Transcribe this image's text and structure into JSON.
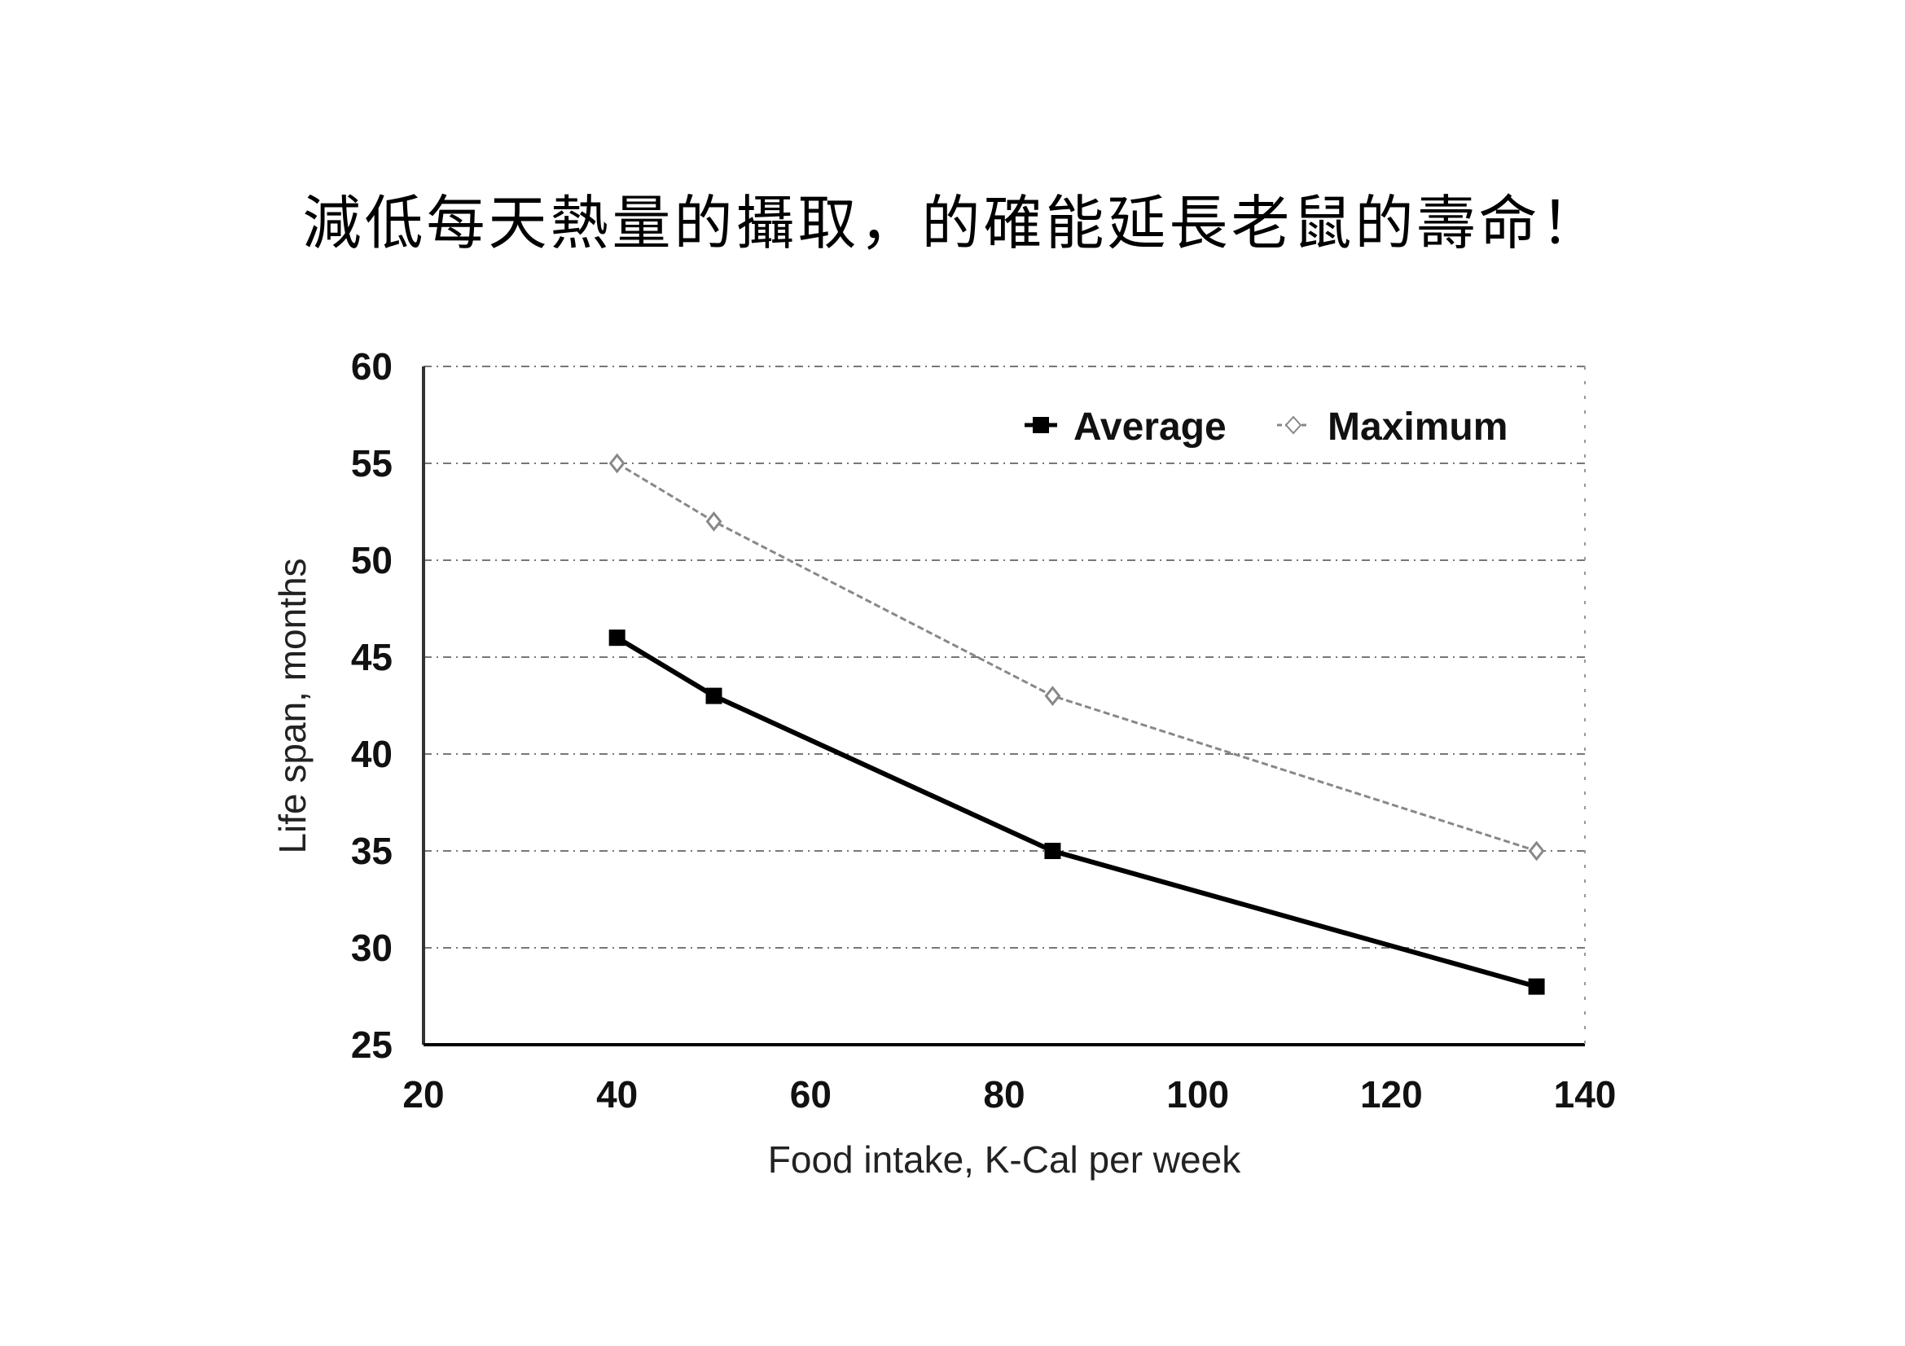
{
  "chart_data": {
    "type": "line",
    "title": "減低每天熱量的攝取，的確能延長老鼠的壽命！",
    "xlabel": "Food intake, K-Cal per week",
    "ylabel": "Life span, months",
    "xlim": [
      20,
      140
    ],
    "ylim": [
      25,
      60
    ],
    "xticks": [
      "20",
      "40",
      "60",
      "80",
      "100",
      "120",
      "140"
    ],
    "yticks": [
      "25",
      "30",
      "35",
      "40",
      "45",
      "50",
      "55",
      "60"
    ],
    "grid": true,
    "legend": "top-right",
    "series": [
      {
        "name": "Average",
        "color": "#000000",
        "marker": "square",
        "x": [
          40,
          50,
          85,
          135
        ],
        "y": [
          46,
          43,
          35,
          28
        ]
      },
      {
        "name": "Maximum",
        "color": "#888888",
        "marker": "diamond",
        "x": [
          40,
          50,
          85,
          135
        ],
        "y": [
          55,
          52,
          43,
          35
        ]
      }
    ]
  }
}
